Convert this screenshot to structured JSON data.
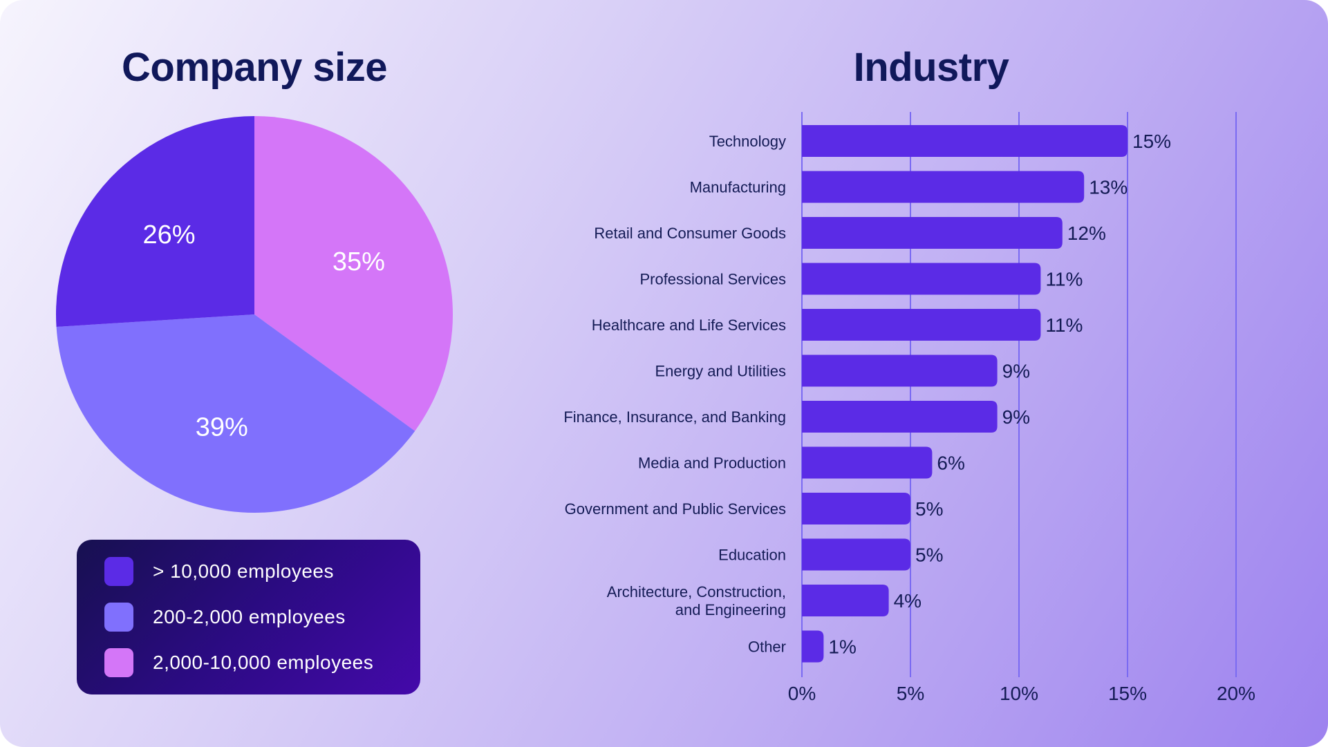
{
  "chart_data": [
    {
      "type": "pie",
      "title": "Company size",
      "slices": [
        {
          "label": "2,000-10,000 employees",
          "value": 35,
          "data_label": "35%",
          "color": "#d476f8"
        },
        {
          "label": "200-2,000 employees",
          "value": 39,
          "data_label": "39%",
          "color": "#8070fd"
        },
        {
          "label": "> 10,000 employees",
          "value": 26,
          "data_label": "26%",
          "color": "#5b2be6"
        }
      ],
      "legend": {
        "placement": "bottom",
        "entries": [
          {
            "label": "> 10,000 employees",
            "color": "#5b2be6"
          },
          {
            "label": "200-2,000 employees",
            "color": "#8070fd"
          },
          {
            "label": "2,000-10,000 employees",
            "color": "#d476f8"
          }
        ]
      }
    },
    {
      "type": "bar",
      "orientation": "horizontal",
      "title": "Industry",
      "categories": [
        "Technology",
        "Manufacturing",
        "Retail and Consumer Goods",
        "Professional Services",
        "Healthcare and Life Services",
        "Energy and Utilities",
        "Finance, Insurance, and Banking",
        "Media and Production",
        "Government and Public Services",
        "Education",
        "Architecture, Construction, and Engineering",
        "Other"
      ],
      "category_lines": [
        [
          "Technology"
        ],
        [
          "Manufacturing"
        ],
        [
          "Retail and Consumer Goods"
        ],
        [
          "Professional Services"
        ],
        [
          "Healthcare and Life Services"
        ],
        [
          "Energy and Utilities"
        ],
        [
          "Finance, Insurance, and Banking"
        ],
        [
          "Media and Production"
        ],
        [
          "Government and Public Services"
        ],
        [
          "Education"
        ],
        [
          "Architecture, Construction,",
          "and Engineering"
        ],
        [
          "Other"
        ]
      ],
      "values": [
        15,
        13,
        12,
        11,
        11,
        9,
        9,
        6,
        5,
        5,
        4,
        1
      ],
      "data_labels": [
        "15%",
        "13%",
        "12%",
        "11%",
        "11%",
        "9%",
        "9%",
        "6%",
        "5%",
        "5%",
        "4%",
        "1%"
      ],
      "xlim": [
        0,
        20
      ],
      "xticks": [
        0,
        5,
        10,
        15,
        20
      ],
      "xtick_labels": [
        "0%",
        "5%",
        "10%",
        "15%",
        "20%"
      ],
      "grid": "vertical",
      "bar_color": "#5b2be6",
      "grid_color": "#7a6af2",
      "text_color": "#141b55"
    }
  ]
}
